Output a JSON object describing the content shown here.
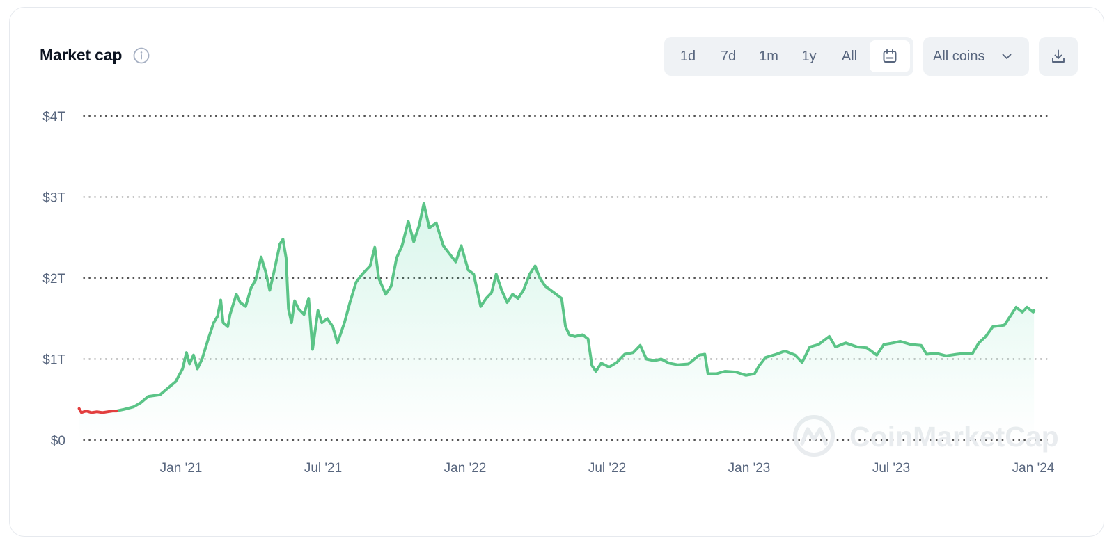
{
  "header": {
    "title": "Market cap"
  },
  "toolbar": {
    "ranges": [
      "1d",
      "7d",
      "1m",
      "1y",
      "All"
    ],
    "active_range_icon": "calendar-icon",
    "coins_select": "All coins",
    "download_icon": "download-icon"
  },
  "watermark": {
    "text": "CoinMarketCap"
  },
  "colors": {
    "up": "#16c784",
    "line": "#5bc487",
    "down": "#e23e3e",
    "fill": "#e8f6ee"
  },
  "chart_data": {
    "type": "area",
    "title": "Market cap",
    "ylabel": "",
    "xlabel": "",
    "ylim": [
      0,
      4
    ],
    "yunit": "trillion USD",
    "yticks": [
      "$0",
      "$1T",
      "$2T",
      "$3T",
      "$4T"
    ],
    "xticks": [
      "Jan '21",
      "Jul '21",
      "Jan '22",
      "Jul '22",
      "Jan '23",
      "Jul '23",
      "Jan '24"
    ],
    "grid": true,
    "series": [
      {
        "points": [
          [
            "2020-08-23",
            0.39
          ],
          [
            "2020-08-26",
            0.34
          ],
          [
            "2020-09-01",
            0.36
          ],
          [
            "2020-09-08",
            0.34
          ],
          [
            "2020-09-15",
            0.35
          ],
          [
            "2020-09-22",
            0.34
          ],
          [
            "2020-09-29",
            0.35
          ],
          [
            "2020-10-05",
            0.36
          ],
          [
            "2020-10-10",
            0.36
          ],
          [
            "2020-10-20",
            0.38
          ],
          [
            "2020-11-01",
            0.41
          ],
          [
            "2020-11-10",
            0.46
          ],
          [
            "2020-11-20",
            0.54
          ],
          [
            "2020-11-28",
            0.55
          ],
          [
            "2020-12-05",
            0.56
          ],
          [
            "2020-12-15",
            0.64
          ],
          [
            "2020-12-25",
            0.72
          ],
          [
            "2021-01-03",
            0.88
          ],
          [
            "2021-01-08",
            1.08
          ],
          [
            "2021-01-12",
            0.94
          ],
          [
            "2021-01-17",
            1.05
          ],
          [
            "2021-01-22",
            0.88
          ],
          [
            "2021-01-28",
            1.0
          ],
          [
            "2021-02-05",
            1.25
          ],
          [
            "2021-02-12",
            1.45
          ],
          [
            "2021-02-17",
            1.53
          ],
          [
            "2021-02-21",
            1.73
          ],
          [
            "2021-02-24",
            1.45
          ],
          [
            "2021-03-02",
            1.4
          ],
          [
            "2021-03-05",
            1.55
          ],
          [
            "2021-03-13",
            1.8
          ],
          [
            "2021-03-18",
            1.7
          ],
          [
            "2021-03-25",
            1.65
          ],
          [
            "2021-04-01",
            1.88
          ],
          [
            "2021-04-07",
            1.98
          ],
          [
            "2021-04-14",
            2.26
          ],
          [
            "2021-04-20",
            2.07
          ],
          [
            "2021-04-25",
            1.85
          ],
          [
            "2021-05-01",
            2.1
          ],
          [
            "2021-05-08",
            2.42
          ],
          [
            "2021-05-12",
            2.48
          ],
          [
            "2021-05-16",
            2.25
          ],
          [
            "2021-05-19",
            1.62
          ],
          [
            "2021-05-23",
            1.45
          ],
          [
            "2021-05-27",
            1.72
          ],
          [
            "2021-06-01",
            1.62
          ],
          [
            "2021-06-08",
            1.55
          ],
          [
            "2021-06-14",
            1.75
          ],
          [
            "2021-06-19",
            1.12
          ],
          [
            "2021-06-26",
            1.6
          ],
          [
            "2021-07-01",
            1.45
          ],
          [
            "2021-07-08",
            1.5
          ],
          [
            "2021-07-15",
            1.4
          ],
          [
            "2021-07-21",
            1.2
          ],
          [
            "2021-07-30",
            1.45
          ],
          [
            "2021-08-06",
            1.7
          ],
          [
            "2021-08-14",
            1.95
          ],
          [
            "2021-08-22",
            2.05
          ],
          [
            "2021-09-01",
            2.15
          ],
          [
            "2021-09-07",
            2.38
          ],
          [
            "2021-09-12",
            2.0
          ],
          [
            "2021-09-21",
            1.8
          ],
          [
            "2021-09-28",
            1.9
          ],
          [
            "2021-10-05",
            2.25
          ],
          [
            "2021-10-12",
            2.4
          ],
          [
            "2021-10-20",
            2.7
          ],
          [
            "2021-10-27",
            2.45
          ],
          [
            "2021-11-03",
            2.65
          ],
          [
            "2021-11-09",
            2.92
          ],
          [
            "2021-11-16",
            2.62
          ],
          [
            "2021-11-25",
            2.68
          ],
          [
            "2021-12-04",
            2.4
          ],
          [
            "2021-12-12",
            2.3
          ],
          [
            "2021-12-20",
            2.2
          ],
          [
            "2021-12-27",
            2.4
          ],
          [
            "2022-01-05",
            2.1
          ],
          [
            "2022-01-12",
            2.05
          ],
          [
            "2022-01-21",
            1.65
          ],
          [
            "2022-01-28",
            1.75
          ],
          [
            "2022-02-04",
            1.82
          ],
          [
            "2022-02-10",
            2.05
          ],
          [
            "2022-02-17",
            1.85
          ],
          [
            "2022-02-24",
            1.7
          ],
          [
            "2022-03-03",
            1.8
          ],
          [
            "2022-03-10",
            1.75
          ],
          [
            "2022-03-17",
            1.85
          ],
          [
            "2022-03-25",
            2.05
          ],
          [
            "2022-04-01",
            2.15
          ],
          [
            "2022-04-07",
            2.0
          ],
          [
            "2022-04-14",
            1.9
          ],
          [
            "2022-04-21",
            1.85
          ],
          [
            "2022-04-28",
            1.8
          ],
          [
            "2022-05-05",
            1.75
          ],
          [
            "2022-05-10",
            1.4
          ],
          [
            "2022-05-15",
            1.3
          ],
          [
            "2022-05-22",
            1.28
          ],
          [
            "2022-06-01",
            1.3
          ],
          [
            "2022-06-08",
            1.25
          ],
          [
            "2022-06-13",
            0.92
          ],
          [
            "2022-06-18",
            0.85
          ],
          [
            "2022-06-25",
            0.95
          ],
          [
            "2022-07-05",
            0.9
          ],
          [
            "2022-07-15",
            0.96
          ],
          [
            "2022-07-25",
            1.06
          ],
          [
            "2022-08-05",
            1.08
          ],
          [
            "2022-08-14",
            1.17
          ],
          [
            "2022-08-22",
            1.0
          ],
          [
            "2022-09-01",
            0.98
          ],
          [
            "2022-09-10",
            1.0
          ],
          [
            "2022-09-20",
            0.95
          ],
          [
            "2022-10-01",
            0.93
          ],
          [
            "2022-10-15",
            0.94
          ],
          [
            "2022-10-29",
            1.05
          ],
          [
            "2022-11-05",
            1.06
          ],
          [
            "2022-11-09",
            0.82
          ],
          [
            "2022-11-20",
            0.82
          ],
          [
            "2022-12-01",
            0.85
          ],
          [
            "2022-12-15",
            0.84
          ],
          [
            "2022-12-28",
            0.8
          ],
          [
            "2023-01-08",
            0.82
          ],
          [
            "2023-01-14",
            0.92
          ],
          [
            "2023-01-22",
            1.02
          ],
          [
            "2023-02-05",
            1.06
          ],
          [
            "2023-02-16",
            1.1
          ],
          [
            "2023-03-01",
            1.05
          ],
          [
            "2023-03-10",
            0.96
          ],
          [
            "2023-03-20",
            1.15
          ],
          [
            "2023-03-31",
            1.18
          ],
          [
            "2023-04-14",
            1.28
          ],
          [
            "2023-04-22",
            1.15
          ],
          [
            "2023-05-05",
            1.2
          ],
          [
            "2023-05-20",
            1.15
          ],
          [
            "2023-06-01",
            1.14
          ],
          [
            "2023-06-14",
            1.05
          ],
          [
            "2023-06-23",
            1.18
          ],
          [
            "2023-07-05",
            1.2
          ],
          [
            "2023-07-14",
            1.22
          ],
          [
            "2023-07-28",
            1.18
          ],
          [
            "2023-08-10",
            1.17
          ],
          [
            "2023-08-17",
            1.06
          ],
          [
            "2023-08-30",
            1.07
          ],
          [
            "2023-09-11",
            1.04
          ],
          [
            "2023-09-25",
            1.06
          ],
          [
            "2023-10-05",
            1.07
          ],
          [
            "2023-10-15",
            1.07
          ],
          [
            "2023-10-23",
            1.2
          ],
          [
            "2023-11-01",
            1.28
          ],
          [
            "2023-11-10",
            1.4
          ],
          [
            "2023-11-25",
            1.42
          ],
          [
            "2023-12-06",
            1.58
          ],
          [
            "2023-12-10",
            1.64
          ],
          [
            "2023-12-18",
            1.58
          ],
          [
            "2023-12-24",
            1.64
          ],
          [
            "2024-01-01",
            1.58
          ],
          [
            "2024-01-02",
            1.6
          ]
        ]
      }
    ],
    "down_segment": [
      "2020-08-23",
      "2020-10-10"
    ]
  }
}
